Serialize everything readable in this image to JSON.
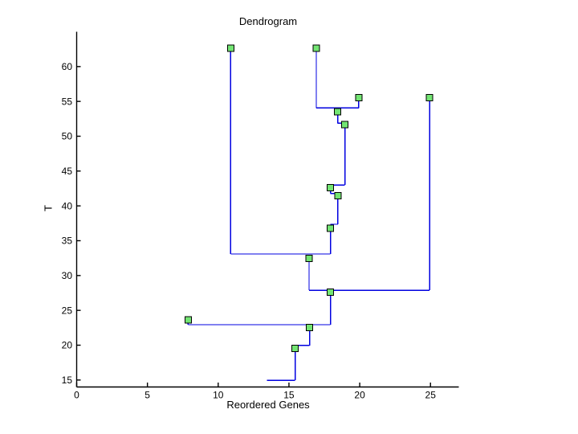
{
  "chart_data": {
    "type": "line",
    "subtype": "dendrogram",
    "title": "Dendrogram",
    "xlabel": "Reordered Genes",
    "ylabel": "T",
    "xlim": [
      0,
      27
    ],
    "ylim": [
      14,
      65
    ],
    "xticks": [
      0,
      5,
      10,
      15,
      20,
      25
    ],
    "yticks": [
      15,
      20,
      25,
      30,
      35,
      40,
      45,
      50,
      55,
      60
    ],
    "grid": false,
    "legend_position": "none",
    "colors": {
      "line": "#0000E0",
      "marker_fill": "#73E573",
      "marker_edge": "#000000",
      "axis": "#000000",
      "text": "#000000",
      "background": "#FFFFFF"
    },
    "nodes": [
      {
        "x": 10.88,
        "T": 62.65
      },
      {
        "x": 16.93,
        "T": 62.65
      },
      {
        "x": 19.93,
        "T": 55.55
      },
      {
        "x": 24.94,
        "T": 55.55
      },
      {
        "x": 18.44,
        "T": 53.52
      },
      {
        "x": 18.95,
        "T": 51.68
      },
      {
        "x": 17.93,
        "T": 42.59
      },
      {
        "x": 18.46,
        "T": 41.47
      },
      {
        "x": 17.93,
        "T": 36.79
      },
      {
        "x": 16.42,
        "T": 32.46
      },
      {
        "x": 17.93,
        "T": 27.63
      },
      {
        "x": 7.88,
        "T": 23.63
      },
      {
        "x": 16.46,
        "T": 22.52
      },
      {
        "x": 15.44,
        "T": 19.52
      }
    ],
    "segments": [
      [
        10.88,
        62.65,
        10.88,
        33.1
      ],
      [
        16.93,
        62.65,
        16.93,
        54.05
      ],
      [
        19.93,
        55.55,
        19.93,
        54.05
      ],
      [
        16.93,
        54.05,
        19.93,
        54.05
      ],
      [
        18.44,
        53.52,
        18.44,
        51.86
      ],
      [
        18.44,
        51.86,
        18.95,
        51.86
      ],
      [
        18.95,
        51.68,
        18.95,
        43.0
      ],
      [
        17.93,
        43.0,
        18.95,
        43.0
      ],
      [
        17.93,
        42.59,
        17.93,
        41.78
      ],
      [
        17.93,
        41.78,
        18.46,
        41.78
      ],
      [
        18.46,
        41.47,
        18.46,
        37.36
      ],
      [
        17.93,
        37.36,
        18.46,
        37.36
      ],
      [
        17.93,
        36.79,
        17.93,
        33.1
      ],
      [
        10.88,
        33.1,
        17.93,
        33.1
      ],
      [
        16.42,
        32.46,
        16.42,
        27.89
      ],
      [
        16.42,
        27.89,
        24.94,
        27.89
      ],
      [
        24.94,
        55.55,
        24.94,
        27.89
      ],
      [
        17.93,
        27.63,
        17.93,
        22.94
      ],
      [
        7.88,
        23.63,
        7.88,
        22.94
      ],
      [
        7.88,
        22.94,
        17.93,
        22.94
      ],
      [
        16.46,
        22.52,
        16.46,
        19.95
      ],
      [
        15.44,
        19.95,
        16.46,
        19.95
      ],
      [
        15.44,
        19.52,
        15.44,
        14.97
      ],
      [
        13.45,
        14.97,
        15.44,
        14.97
      ]
    ]
  }
}
